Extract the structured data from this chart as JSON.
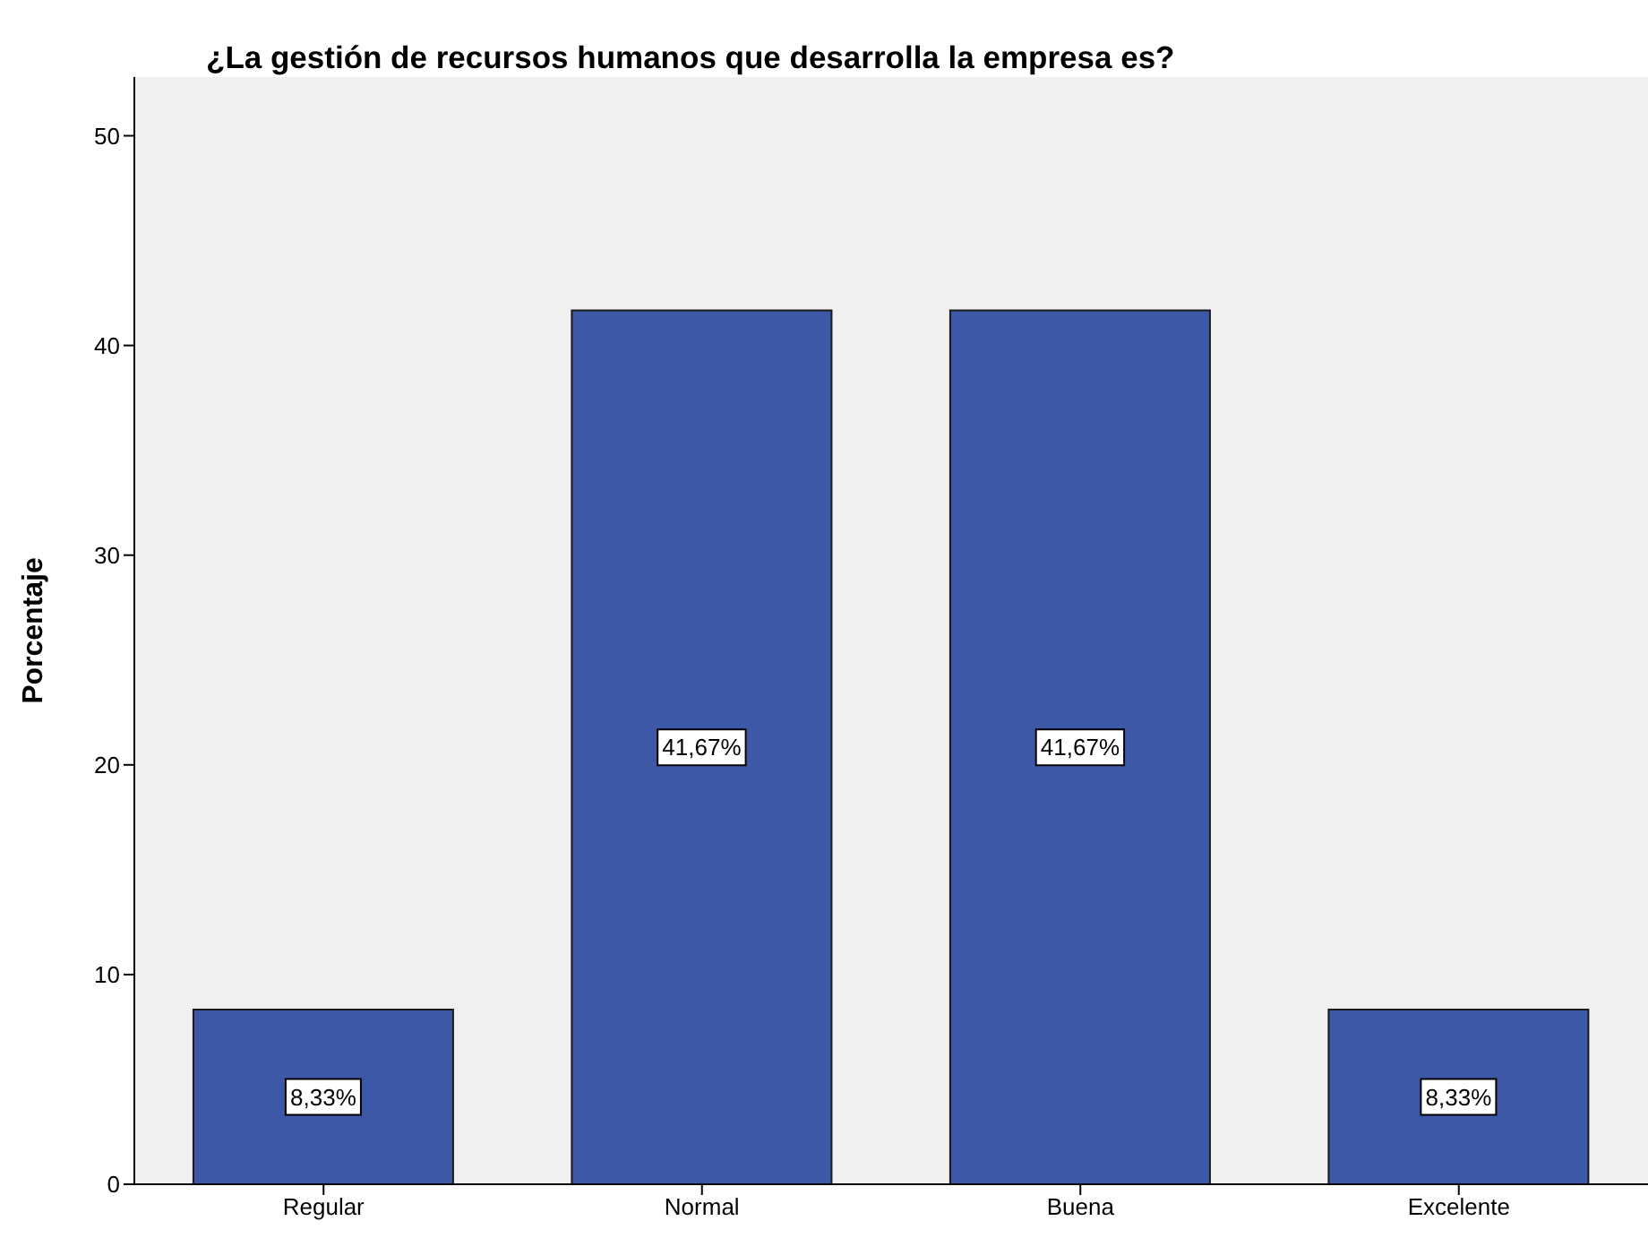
{
  "chart_data": {
    "type": "bar",
    "title": "¿La gestión de recursos humanos que desarrolla la empresa es?",
    "ylabel": "Porcentaje",
    "categories": [
      "Regular",
      "Normal",
      "Buena",
      "Excelente"
    ],
    "values": [
      8.33,
      41.67,
      41.67,
      8.33
    ],
    "value_labels": [
      "8,33%",
      "41,67%",
      "41,67%",
      "8,33%"
    ],
    "color": "#3e58a8",
    "ylim": [
      0,
      52.8
    ],
    "yticks": [
      0,
      10,
      20,
      30,
      40,
      50
    ]
  }
}
